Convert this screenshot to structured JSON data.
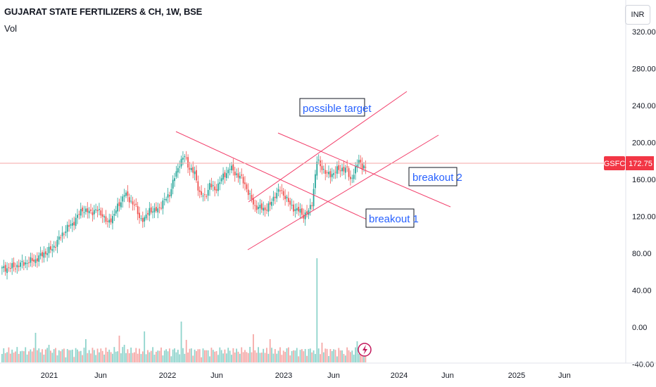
{
  "header": {
    "title": "GUJARAT STATE FERTILIZERS & CH, 1W, BSE",
    "vol_label": "Vol",
    "currency": "INR"
  },
  "colors": {
    "up": "#26a69a",
    "down": "#ef5350",
    "up_vol": "#8fd4cc",
    "down_vol": "#f5a9a7",
    "trend": "#f23e6a",
    "price_line": "#f5a5a5",
    "anno": "#2962ff",
    "badge": "#f23645"
  },
  "chart_data": {
    "type": "candlestick",
    "title": "GUJARAT STATE FERTILIZERS & CH, 1W, BSE",
    "xlabel": "",
    "ylabel": "",
    "ylim": [
      -45,
      325
    ],
    "yticks": [
      "320.00",
      "280.00",
      "240.00",
      "200.00",
      "160.00",
      "120.00",
      "80.00",
      "40.00",
      "0.00",
      "-40.00"
    ],
    "xticks": [
      "2021",
      "Jun",
      "2022",
      "Jun",
      "2023",
      "Jun",
      "2024",
      "Jun",
      "2025",
      "Jun"
    ],
    "last_price": {
      "symbol": "GSFC",
      "value": "172.75"
    },
    "annotations": [
      "possible target",
      "breakout 2",
      "breakout 1"
    ],
    "price_anchors": [
      [
        0,
        63
      ],
      [
        8,
        66
      ],
      [
        14,
        70
      ],
      [
        20,
        73
      ],
      [
        25,
        80
      ],
      [
        30,
        85
      ],
      [
        33,
        93
      ],
      [
        38,
        106
      ],
      [
        42,
        112
      ],
      [
        45,
        120
      ],
      [
        48,
        128
      ],
      [
        52,
        124
      ],
      [
        56,
        127
      ],
      [
        60,
        122
      ],
      [
        63,
        112
      ],
      [
        66,
        120
      ],
      [
        70,
        133
      ],
      [
        73,
        145
      ],
      [
        76,
        138
      ],
      [
        79,
        133
      ],
      [
        82,
        119
      ],
      [
        85,
        116
      ],
      [
        88,
        128
      ],
      [
        91,
        125
      ],
      [
        94,
        130
      ],
      [
        97,
        137
      ],
      [
        100,
        145
      ],
      [
        103,
        162
      ],
      [
        106,
        178
      ],
      [
        109,
        185
      ],
      [
        112,
        172
      ],
      [
        115,
        166
      ],
      [
        118,
        145
      ],
      [
        121,
        140
      ],
      [
        124,
        155
      ],
      [
        127,
        148
      ],
      [
        130,
        158
      ],
      [
        133,
        165
      ],
      [
        136,
        173
      ],
      [
        139,
        167
      ],
      [
        142,
        163
      ],
      [
        145,
        155
      ],
      [
        148,
        141
      ],
      [
        151,
        131
      ],
      [
        154,
        129
      ],
      [
        157,
        128
      ],
      [
        160,
        132
      ],
      [
        163,
        144
      ],
      [
        166,
        148
      ],
      [
        169,
        142
      ],
      [
        172,
        132
      ],
      [
        175,
        128
      ],
      [
        178,
        125
      ],
      [
        180,
        121
      ],
      [
        183,
        125
      ],
      [
        185,
        135
      ],
      [
        188,
        180
      ],
      [
        191,
        173
      ],
      [
        194,
        165
      ],
      [
        197,
        166
      ],
      [
        200,
        170
      ],
      [
        203,
        172
      ],
      [
        206,
        170
      ],
      [
        208,
        160
      ],
      [
        211,
        170
      ],
      [
        213,
        182
      ],
      [
        215,
        174
      ],
      [
        217,
        172.75
      ]
    ],
    "volume_spikes": [
      [
        20,
        42
      ],
      [
        28,
        25
      ],
      [
        50,
        33
      ],
      [
        70,
        38
      ],
      [
        73,
        25
      ],
      [
        85,
        44
      ],
      [
        107,
        58
      ],
      [
        110,
        32
      ],
      [
        150,
        40
      ],
      [
        160,
        33
      ],
      [
        170,
        20
      ],
      [
        188,
        148
      ],
      [
        191,
        28
      ],
      [
        204,
        12
      ],
      [
        212,
        30
      ]
    ]
  }
}
